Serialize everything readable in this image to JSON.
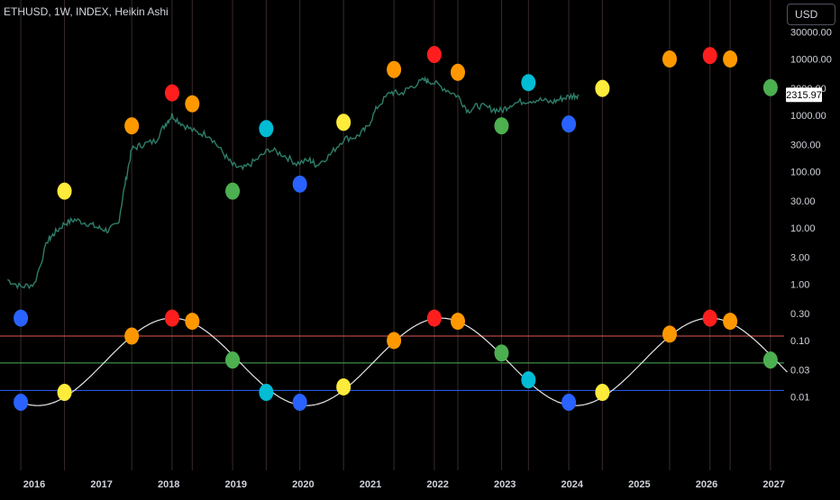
{
  "header": {
    "symbol_line": "ETHUSD, 1W, INDEX, Heikin Ashi",
    "currency_button": "USD"
  },
  "colors": {
    "background": "#000000",
    "axis_text": "#d1d4dc",
    "price_line": "#2e7d6a",
    "sine_line": "#e6e6e6",
    "hline_red": "#e05a52",
    "hline_green": "#4caf50",
    "hline_blue": "#2962ff",
    "vline": "#3a2a2a",
    "price_label_bg": "#ffffff",
    "price_label_text": "#000000",
    "dot_blue": "#2962ff",
    "dot_yellow": "#ffeb3b",
    "dot_orange": "#ff9800",
    "dot_red": "#ff1e1e",
    "dot_cyan": "#00bcd4",
    "dot_green": "#4caf50"
  },
  "chart_data": {
    "type": "line",
    "y_scale": "log",
    "grid": false,
    "x_ticks": [
      "2016",
      "2017",
      "2018",
      "2019",
      "2020",
      "2021",
      "2022",
      "2023",
      "2024",
      "2025",
      "2026",
      "2027"
    ],
    "y_ticks": [
      "30000.00",
      "10000.00",
      "3000.00",
      "1000.00",
      "300.00",
      "100.00",
      "30.00",
      "10.00",
      "3.00",
      "1.00",
      "0.30",
      "0.10",
      "0.03",
      "0.01"
    ],
    "current_price_label": "2315.97",
    "current_price": 2315.97,
    "price_series": {
      "x": [
        2015.6,
        2015.8,
        2016.0,
        2016.2,
        2016.3,
        2016.45,
        2016.6,
        2016.8,
        2016.95,
        2017.1,
        2017.25,
        2017.35,
        2017.45,
        2017.6,
        2017.8,
        2017.95,
        2018.05,
        2018.2,
        2018.4,
        2018.6,
        2018.8,
        2018.95,
        2019.1,
        2019.3,
        2019.5,
        2019.7,
        2019.9,
        2020.1,
        2020.2,
        2020.4,
        2020.6,
        2020.8,
        2020.95,
        2021.1,
        2021.3,
        2021.45,
        2021.6,
        2021.8,
        2021.9,
        2022.1,
        2022.3,
        2022.45,
        2022.6,
        2022.8,
        2022.95,
        2023.1,
        2023.3,
        2023.5,
        2023.7,
        2023.85,
        2024.0,
        2024.1
      ],
      "y": [
        1.2,
        0.9,
        1.0,
        6,
        8,
        12,
        14,
        12,
        10,
        9,
        12,
        60,
        250,
        300,
        350,
        700,
        1000,
        700,
        500,
        450,
        220,
        130,
        110,
        160,
        250,
        200,
        140,
        160,
        130,
        200,
        380,
        420,
        600,
        1400,
        2600,
        2400,
        3200,
        4200,
        4000,
        3000,
        2200,
        1200,
        1500,
        1300,
        1200,
        1600,
        1800,
        1900,
        1700,
        2000,
        2200,
        2315.97
      ]
    },
    "sine_wave": {
      "midline": 0.04,
      "peak": 0.25,
      "trough": 0.007,
      "period_years": 4.0,
      "peak_years": [
        2018.05,
        2022.05,
        2026.05
      ]
    },
    "horizontal_lines": [
      {
        "y": 0.12,
        "color": "#e05a52"
      },
      {
        "y": 0.04,
        "color": "#4caf50"
      },
      {
        "y": 0.013,
        "color": "#2962ff"
      }
    ],
    "price_dots": [
      {
        "x": 2015.8,
        "y": 0.25,
        "color": "#2962ff"
      },
      {
        "x": 2016.45,
        "y": 45,
        "color": "#ffeb3b"
      },
      {
        "x": 2017.45,
        "y": 650,
        "color": "#ff9800"
      },
      {
        "x": 2018.05,
        "y": 2500,
        "color": "#ff1e1e"
      },
      {
        "x": 2018.35,
        "y": 1600,
        "color": "#ff9800"
      },
      {
        "x": 2018.95,
        "y": 45,
        "color": "#4caf50"
      },
      {
        "x": 2019.45,
        "y": 580,
        "color": "#00bcd4"
      },
      {
        "x": 2019.95,
        "y": 60,
        "color": "#2962ff"
      },
      {
        "x": 2020.6,
        "y": 750,
        "color": "#ffeb3b"
      },
      {
        "x": 2021.35,
        "y": 6500,
        "color": "#ff9800"
      },
      {
        "x": 2021.95,
        "y": 12000,
        "color": "#ff1e1e"
      },
      {
        "x": 2022.3,
        "y": 5800,
        "color": "#ff9800"
      },
      {
        "x": 2022.95,
        "y": 650,
        "color": "#4caf50"
      },
      {
        "x": 2023.35,
        "y": 3800,
        "color": "#00bcd4"
      },
      {
        "x": 2023.95,
        "y": 700,
        "color": "#2962ff"
      },
      {
        "x": 2024.45,
        "y": 3000,
        "color": "#ffeb3b"
      },
      {
        "x": 2025.45,
        "y": 10000,
        "color": "#ff9800"
      },
      {
        "x": 2026.05,
        "y": 11500,
        "color": "#ff1e1e"
      },
      {
        "x": 2026.35,
        "y": 10000,
        "color": "#ff9800"
      },
      {
        "x": 2026.95,
        "y": 3100,
        "color": "#4caf50"
      }
    ],
    "sine_dots": [
      {
        "x": 2015.8,
        "y": 0.008,
        "color": "#2962ff"
      },
      {
        "x": 2016.45,
        "y": 0.012,
        "color": "#ffeb3b"
      },
      {
        "x": 2017.45,
        "y": 0.12,
        "color": "#ff9800"
      },
      {
        "x": 2018.05,
        "y": 0.25,
        "color": "#ff1e1e"
      },
      {
        "x": 2018.35,
        "y": 0.22,
        "color": "#ff9800"
      },
      {
        "x": 2018.95,
        "y": 0.045,
        "color": "#4caf50"
      },
      {
        "x": 2019.45,
        "y": 0.012,
        "color": "#00bcd4"
      },
      {
        "x": 2019.95,
        "y": 0.008,
        "color": "#2962ff"
      },
      {
        "x": 2020.6,
        "y": 0.015,
        "color": "#ffeb3b"
      },
      {
        "x": 2021.35,
        "y": 0.1,
        "color": "#ff9800"
      },
      {
        "x": 2021.95,
        "y": 0.25,
        "color": "#ff1e1e"
      },
      {
        "x": 2022.3,
        "y": 0.22,
        "color": "#ff9800"
      },
      {
        "x": 2022.95,
        "y": 0.06,
        "color": "#4caf50"
      },
      {
        "x": 2023.35,
        "y": 0.02,
        "color": "#00bcd4"
      },
      {
        "x": 2023.95,
        "y": 0.008,
        "color": "#2962ff"
      },
      {
        "x": 2024.45,
        "y": 0.012,
        "color": "#ffeb3b"
      },
      {
        "x": 2025.45,
        "y": 0.13,
        "color": "#ff9800"
      },
      {
        "x": 2026.05,
        "y": 0.25,
        "color": "#ff1e1e"
      },
      {
        "x": 2026.35,
        "y": 0.22,
        "color": "#ff9800"
      },
      {
        "x": 2026.95,
        "y": 0.045,
        "color": "#4caf50"
      }
    ],
    "vertical_lines_x": [
      2015.8,
      2016.45,
      2017.45,
      2018.05,
      2018.35,
      2018.95,
      2019.45,
      2019.95,
      2020.6,
      2021.35,
      2021.95,
      2022.3,
      2022.95,
      2023.35,
      2023.95,
      2024.45,
      2025.45,
      2026.05,
      2026.35,
      2026.95
    ]
  }
}
